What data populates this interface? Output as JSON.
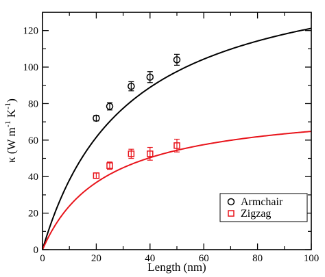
{
  "chart_data": {
    "type": "scatter",
    "title": "",
    "xlabel": "Length (nm)",
    "ylabel": {
      "base": "κ (W m",
      "sup1": "-1",
      "mid": " K",
      "sup2": "-1",
      "end": ")"
    },
    "xlim": [
      0,
      100
    ],
    "ylim": [
      0,
      130
    ],
    "xticks": [
      0,
      20,
      40,
      60,
      80,
      100
    ],
    "yticks": [
      0,
      20,
      40,
      60,
      80,
      100,
      120
    ],
    "grid": false,
    "legend_position": "bottom-right",
    "series": [
      {
        "name": "Armchair",
        "color": "#000000",
        "marker": "circle",
        "x": [
          20,
          25,
          33,
          40,
          50
        ],
        "y": [
          72,
          78.5,
          89.5,
          94.5,
          104
        ],
        "err": [
          1.5,
          2,
          2.5,
          3,
          3
        ],
        "fit": {
          "kmax": 160,
          "lhalf": 32
        }
      },
      {
        "name": "Zigzag",
        "color": "#e8141b",
        "marker": "square",
        "x": [
          20,
          25,
          33,
          40,
          50
        ],
        "y": [
          40.5,
          46,
          52.5,
          52.5,
          57
        ],
        "err": [
          1.5,
          2,
          2.5,
          3.5,
          3.5
        ],
        "fit": {
          "kmax": 80,
          "lhalf": 23.5
        }
      }
    ]
  }
}
